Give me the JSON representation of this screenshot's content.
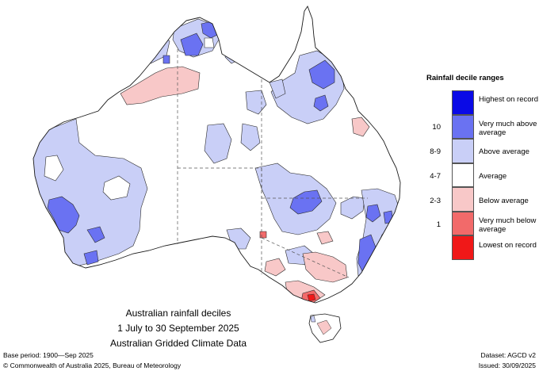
{
  "map": {
    "title_lines": [
      "Australian rainfall deciles",
      "1 July to 30 September 2025",
      "Australian Gridded Climate Data"
    ],
    "base_period": "Base period: 1900—Sep 2025",
    "copyright": "© Commonwealth of Australia 2025, Bureau of Meteorology",
    "dataset": "Dataset: AGCD v2",
    "issued": "Issued: 30/09/2025"
  },
  "legend": {
    "title": "Rainfall decile ranges",
    "items": [
      {
        "label": "Highest on record",
        "decile": "",
        "color": "#0a0ae6"
      },
      {
        "label": "Very much above average",
        "decile": "10",
        "color": "#6a72f2"
      },
      {
        "label": "Above average",
        "decile": "8-9",
        "color": "#c9cff7"
      },
      {
        "label": "Average",
        "decile": "4-7",
        "color": "#ffffff"
      },
      {
        "label": "Below average",
        "decile": "2-3",
        "color": "#f8c8c8"
      },
      {
        "label": "Very much below average",
        "decile": "1",
        "color": "#f26a6a"
      },
      {
        "label": "Lowest on record",
        "decile": "",
        "color": "#f01818"
      }
    ]
  }
}
